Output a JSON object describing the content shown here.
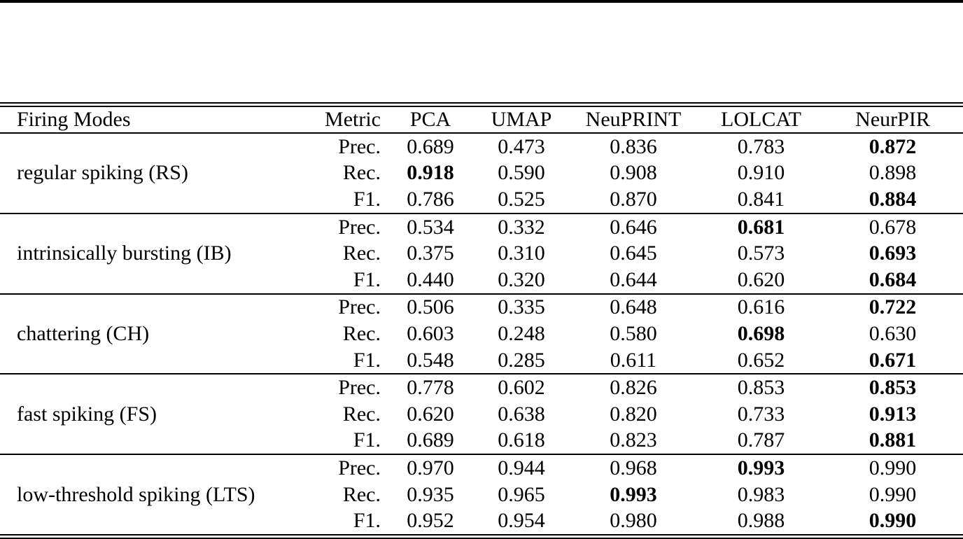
{
  "page": {
    "background": "#ffffff",
    "text_color": "#000000"
  },
  "table": {
    "header": {
      "firing_modes": "Firing Modes",
      "metric": "Metric",
      "methods": [
        "PCA",
        "UMAP",
        "NeuPRINT",
        "LOLCAT",
        "NeurPIR"
      ]
    },
    "groups": [
      {
        "mode": "regular spiking (RS)",
        "rows": [
          {
            "metric": "Prec.",
            "values": [
              "0.689",
              "0.473",
              "0.836",
              "0.783",
              "0.872"
            ],
            "bold_index": 4
          },
          {
            "metric": "Rec.",
            "values": [
              "0.918",
              "0.590",
              "0.908",
              "0.910",
              "0.898"
            ],
            "bold_index": 0
          },
          {
            "metric": "F1.",
            "values": [
              "0.786",
              "0.525",
              "0.870",
              "0.841",
              "0.884"
            ],
            "bold_index": 4
          }
        ]
      },
      {
        "mode": "intrinsically bursting (IB)",
        "rows": [
          {
            "metric": "Prec.",
            "values": [
              "0.534",
              "0.332",
              "0.646",
              "0.681",
              "0.678"
            ],
            "bold_index": 3
          },
          {
            "metric": "Rec.",
            "values": [
              "0.375",
              "0.310",
              "0.645",
              "0.573",
              "0.693"
            ],
            "bold_index": 4
          },
          {
            "metric": "F1.",
            "values": [
              "0.440",
              "0.320",
              "0.644",
              "0.620",
              "0.684"
            ],
            "bold_index": 4
          }
        ]
      },
      {
        "mode": "chattering (CH)",
        "rows": [
          {
            "metric": "Prec.",
            "values": [
              "0.506",
              "0.335",
              "0.648",
              "0.616",
              "0.722"
            ],
            "bold_index": 4
          },
          {
            "metric": "Rec.",
            "values": [
              "0.603",
              "0.248",
              "0.580",
              "0.698",
              "0.630"
            ],
            "bold_index": 3
          },
          {
            "metric": "F1.",
            "values": [
              "0.548",
              "0.285",
              "0.611",
              "0.652",
              "0.671"
            ],
            "bold_index": 4
          }
        ]
      },
      {
        "mode": "fast spiking (FS)",
        "rows": [
          {
            "metric": "Prec.",
            "values": [
              "0.778",
              "0.602",
              "0.826",
              "0.853",
              "0.853"
            ],
            "bold_index": 4
          },
          {
            "metric": "Rec.",
            "values": [
              "0.620",
              "0.638",
              "0.820",
              "0.733",
              "0.913"
            ],
            "bold_index": 4
          },
          {
            "metric": "F1.",
            "values": [
              "0.689",
              "0.618",
              "0.823",
              "0.787",
              "0.881"
            ],
            "bold_index": 4
          }
        ]
      },
      {
        "mode": "low-threshold spiking (LTS)",
        "rows": [
          {
            "metric": "Prec.",
            "values": [
              "0.970",
              "0.944",
              "0.968",
              "0.993",
              "0.990"
            ],
            "bold_index": 3
          },
          {
            "metric": "Rec.",
            "values": [
              "0.935",
              "0.965",
              "0.993",
              "0.983",
              "0.990"
            ],
            "bold_index": 2
          },
          {
            "metric": "F1.",
            "values": [
              "0.952",
              "0.954",
              "0.980",
              "0.988",
              "0.990"
            ],
            "bold_index": 4
          }
        ]
      }
    ]
  }
}
